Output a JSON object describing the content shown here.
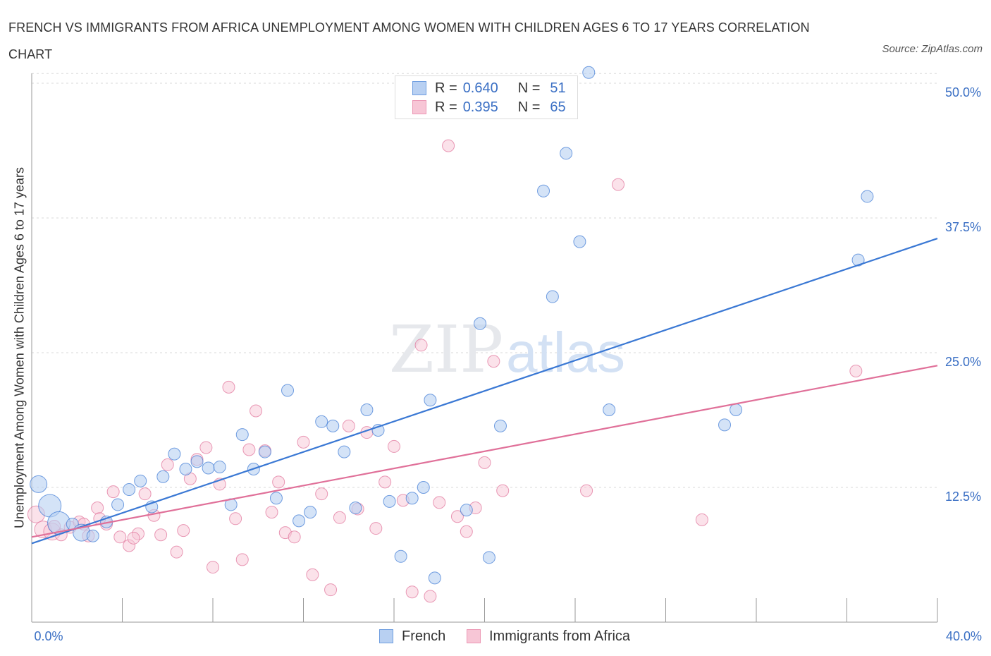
{
  "chart_data": {
    "type": "scatter",
    "title": "FRENCH VS IMMIGRANTS FROM AFRICA UNEMPLOYMENT AMONG WOMEN WITH CHILDREN AGES 6 TO 17 YEARS CORRELATION CHART",
    "source": "Source: ZipAtlas.com",
    "ylabel": "Unemployment Among Women with Children Ages 6 to 17 years",
    "xlabel": "",
    "xlim": [
      0,
      40
    ],
    "ylim": [
      0,
      50
    ],
    "x_tick_labels": [
      "0.0%",
      "40.0%"
    ],
    "y_tick_labels": [
      "12.5%",
      "25.0%",
      "37.5%",
      "50.0%"
    ],
    "y_ticks": [
      12.5,
      25.0,
      37.5,
      50.0
    ],
    "grid": "horizontal dashed",
    "watermark": "ZIPatlas",
    "legend_position": "top-center",
    "stats": [
      {
        "r_label": "R =",
        "r_value": "0.640",
        "n_label": "N =",
        "n_value": "51"
      },
      {
        "r_label": "R =",
        "r_value": "0.395",
        "n_label": "N =",
        "n_value": "65"
      }
    ],
    "series": [
      {
        "name": "French",
        "color": "#3a78d4",
        "fill": "#b8d0f2",
        "trend": {
          "x": [
            0.0,
            40.0
          ],
          "y": [
            7.3,
            35.6
          ]
        },
        "points": [
          {
            "x": 0.3,
            "y": 12.8,
            "s": 3
          },
          {
            "x": 0.8,
            "y": 10.8,
            "s": 4
          },
          {
            "x": 1.2,
            "y": 9.2,
            "s": 4
          },
          {
            "x": 1.8,
            "y": 9.1,
            "s": 2
          },
          {
            "x": 2.2,
            "y": 8.3,
            "s": 3
          },
          {
            "x": 2.7,
            "y": 8.0,
            "s": 2
          },
          {
            "x": 3.3,
            "y": 9.3,
            "s": 2
          },
          {
            "x": 3.8,
            "y": 10.9,
            "s": 2
          },
          {
            "x": 4.3,
            "y": 12.3,
            "s": 2
          },
          {
            "x": 4.8,
            "y": 13.1,
            "s": 2
          },
          {
            "x": 5.3,
            "y": 10.7,
            "s": 2
          },
          {
            "x": 5.8,
            "y": 13.5,
            "s": 2
          },
          {
            "x": 6.3,
            "y": 15.6,
            "s": 2
          },
          {
            "x": 6.8,
            "y": 14.2,
            "s": 2
          },
          {
            "x": 7.3,
            "y": 14.9,
            "s": 2
          },
          {
            "x": 7.8,
            "y": 14.3,
            "s": 2
          },
          {
            "x": 8.3,
            "y": 14.4,
            "s": 2
          },
          {
            "x": 8.8,
            "y": 10.9,
            "s": 2
          },
          {
            "x": 9.3,
            "y": 17.4,
            "s": 2
          },
          {
            "x": 9.8,
            "y": 14.2,
            "s": 2
          },
          {
            "x": 10.3,
            "y": 15.8,
            "s": 2
          },
          {
            "x": 10.8,
            "y": 11.5,
            "s": 2
          },
          {
            "x": 11.3,
            "y": 21.5,
            "s": 2
          },
          {
            "x": 11.8,
            "y": 9.4,
            "s": 2
          },
          {
            "x": 12.3,
            "y": 10.2,
            "s": 2
          },
          {
            "x": 12.8,
            "y": 18.6,
            "s": 2
          },
          {
            "x": 13.3,
            "y": 18.2,
            "s": 2
          },
          {
            "x": 13.8,
            "y": 15.8,
            "s": 2
          },
          {
            "x": 14.3,
            "y": 10.6,
            "s": 2
          },
          {
            "x": 14.8,
            "y": 19.7,
            "s": 2
          },
          {
            "x": 15.3,
            "y": 17.8,
            "s": 2
          },
          {
            "x": 15.8,
            "y": 11.2,
            "s": 2
          },
          {
            "x": 16.3,
            "y": 6.1,
            "s": 2
          },
          {
            "x": 16.8,
            "y": 11.5,
            "s": 2
          },
          {
            "x": 17.3,
            "y": 12.5,
            "s": 2
          },
          {
            "x": 17.8,
            "y": 4.1,
            "s": 2
          },
          {
            "x": 17.6,
            "y": 20.6,
            "s": 2
          },
          {
            "x": 19.2,
            "y": 10.4,
            "s": 2
          },
          {
            "x": 19.8,
            "y": 27.7,
            "s": 2
          },
          {
            "x": 20.2,
            "y": 6.0,
            "s": 2
          },
          {
            "x": 20.7,
            "y": 18.2,
            "s": 2
          },
          {
            "x": 22.6,
            "y": 40.0,
            "s": 2
          },
          {
            "x": 23.0,
            "y": 30.2,
            "s": 2
          },
          {
            "x": 23.6,
            "y": 43.5,
            "s": 2
          },
          {
            "x": 24.2,
            "y": 35.3,
            "s": 2
          },
          {
            "x": 24.6,
            "y": 51.0,
            "s": 2
          },
          {
            "x": 25.5,
            "y": 19.7,
            "s": 2
          },
          {
            "x": 30.6,
            "y": 18.3,
            "s": 2
          },
          {
            "x": 31.1,
            "y": 19.7,
            "s": 2
          },
          {
            "x": 36.5,
            "y": 33.6,
            "s": 2
          },
          {
            "x": 36.9,
            "y": 39.5,
            "s": 2
          }
        ]
      },
      {
        "name": "Immigrants from Africa",
        "color": "#e07099",
        "fill": "#f7c6d6",
        "trend": {
          "x": [
            0.0,
            40.0
          ],
          "y": [
            7.9,
            23.8
          ]
        },
        "points": [
          {
            "x": 0.2,
            "y": 10.0,
            "s": 3
          },
          {
            "x": 0.5,
            "y": 8.6,
            "s": 3
          },
          {
            "x": 0.9,
            "y": 8.4,
            "s": 3
          },
          {
            "x": 1.3,
            "y": 8.1,
            "s": 2
          },
          {
            "x": 1.7,
            "y": 8.8,
            "s": 2
          },
          {
            "x": 2.1,
            "y": 9.3,
            "s": 2
          },
          {
            "x": 2.5,
            "y": 8.0,
            "s": 2
          },
          {
            "x": 2.9,
            "y": 10.6,
            "s": 2
          },
          {
            "x": 3.3,
            "y": 9.1,
            "s": 2
          },
          {
            "x": 3.6,
            "y": 12.1,
            "s": 2
          },
          {
            "x": 3.9,
            "y": 7.9,
            "s": 2
          },
          {
            "x": 4.3,
            "y": 7.1,
            "s": 2
          },
          {
            "x": 4.7,
            "y": 8.2,
            "s": 2
          },
          {
            "x": 5.0,
            "y": 11.9,
            "s": 2
          },
          {
            "x": 5.4,
            "y": 9.9,
            "s": 2
          },
          {
            "x": 5.7,
            "y": 8.1,
            "s": 2
          },
          {
            "x": 6.0,
            "y": 14.6,
            "s": 2
          },
          {
            "x": 6.4,
            "y": 6.5,
            "s": 2
          },
          {
            "x": 6.7,
            "y": 8.5,
            "s": 2
          },
          {
            "x": 7.0,
            "y": 13.3,
            "s": 2
          },
          {
            "x": 7.3,
            "y": 15.1,
            "s": 2
          },
          {
            "x": 7.7,
            "y": 16.2,
            "s": 2
          },
          {
            "x": 8.0,
            "y": 5.1,
            "s": 2
          },
          {
            "x": 8.3,
            "y": 12.8,
            "s": 2
          },
          {
            "x": 8.7,
            "y": 21.8,
            "s": 2
          },
          {
            "x": 9.0,
            "y": 9.6,
            "s": 2
          },
          {
            "x": 9.3,
            "y": 5.8,
            "s": 2
          },
          {
            "x": 9.6,
            "y": 16.0,
            "s": 2
          },
          {
            "x": 9.9,
            "y": 19.6,
            "s": 2
          },
          {
            "x": 10.3,
            "y": 15.9,
            "s": 2
          },
          {
            "x": 10.6,
            "y": 10.2,
            "s": 2
          },
          {
            "x": 10.9,
            "y": 13.0,
            "s": 2
          },
          {
            "x": 11.2,
            "y": 8.3,
            "s": 2
          },
          {
            "x": 11.6,
            "y": 7.9,
            "s": 2
          },
          {
            "x": 12.0,
            "y": 16.7,
            "s": 2
          },
          {
            "x": 12.4,
            "y": 4.4,
            "s": 2
          },
          {
            "x": 12.8,
            "y": 11.9,
            "s": 2
          },
          {
            "x": 13.2,
            "y": 3.0,
            "s": 2
          },
          {
            "x": 13.6,
            "y": 9.7,
            "s": 2
          },
          {
            "x": 14.0,
            "y": 18.2,
            "s": 2
          },
          {
            "x": 14.4,
            "y": 10.5,
            "s": 2
          },
          {
            "x": 14.8,
            "y": 17.6,
            "s": 2
          },
          {
            "x": 15.2,
            "y": 8.7,
            "s": 2
          },
          {
            "x": 15.6,
            "y": 13.0,
            "s": 2
          },
          {
            "x": 16.0,
            "y": 16.3,
            "s": 2
          },
          {
            "x": 16.4,
            "y": 11.3,
            "s": 2
          },
          {
            "x": 16.8,
            "y": 2.8,
            "s": 2
          },
          {
            "x": 17.2,
            "y": 25.7,
            "s": 2
          },
          {
            "x": 17.6,
            "y": 2.4,
            "s": 2
          },
          {
            "x": 18.0,
            "y": 11.1,
            "s": 2
          },
          {
            "x": 18.4,
            "y": 44.2,
            "s": 2
          },
          {
            "x": 18.8,
            "y": 9.8,
            "s": 2
          },
          {
            "x": 19.2,
            "y": 8.4,
            "s": 2
          },
          {
            "x": 19.6,
            "y": 10.6,
            "s": 2
          },
          {
            "x": 20.0,
            "y": 14.8,
            "s": 2
          },
          {
            "x": 20.4,
            "y": 24.2,
            "s": 2
          },
          {
            "x": 20.8,
            "y": 12.2,
            "s": 2
          },
          {
            "x": 24.5,
            "y": 12.2,
            "s": 2
          },
          {
            "x": 25.9,
            "y": 40.6,
            "s": 2
          },
          {
            "x": 29.6,
            "y": 9.5,
            "s": 2
          },
          {
            "x": 36.4,
            "y": 23.3,
            "s": 2
          },
          {
            "x": 1.0,
            "y": 8.9,
            "s": 2
          },
          {
            "x": 2.3,
            "y": 9.1,
            "s": 2
          },
          {
            "x": 3.0,
            "y": 9.6,
            "s": 2
          },
          {
            "x": 4.5,
            "y": 7.8,
            "s": 2
          }
        ]
      }
    ]
  }
}
